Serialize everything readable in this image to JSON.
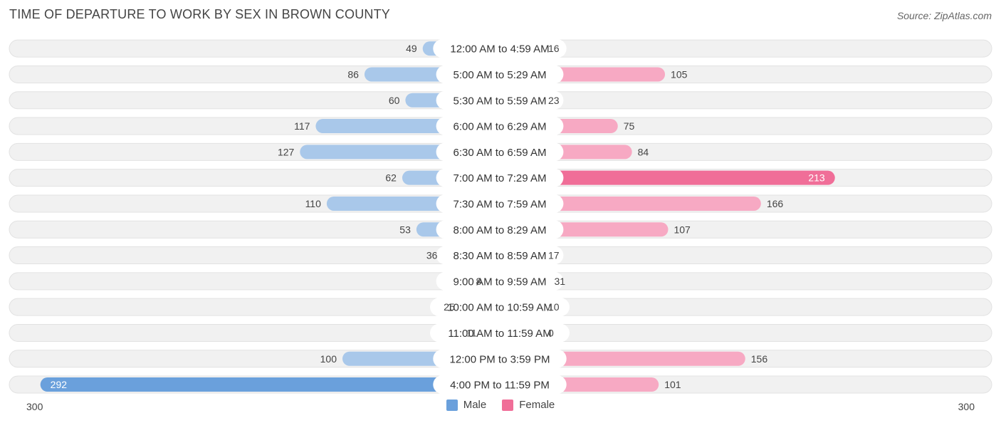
{
  "title": "TIME OF DEPARTURE TO WORK BY SEX IN BROWN COUNTY",
  "source": "Source: ZipAtlas.com",
  "colors": {
    "male_light": "#a9c8ea",
    "male_dark": "#6aa0dc",
    "female_light": "#f7a9c3",
    "female_dark": "#f06e98",
    "track": "#f1f1f1"
  },
  "chart_data": {
    "type": "bar",
    "orientation": "horizontal-diverging",
    "categories": [
      "12:00 AM to 4:59 AM",
      "5:00 AM to 5:29 AM",
      "5:30 AM to 5:59 AM",
      "6:00 AM to 6:29 AM",
      "6:30 AM to 6:59 AM",
      "7:00 AM to 7:29 AM",
      "7:30 AM to 7:59 AM",
      "8:00 AM to 8:29 AM",
      "8:30 AM to 8:59 AM",
      "9:00 AM to 9:59 AM",
      "10:00 AM to 10:59 AM",
      "11:00 AM to 11:59 AM",
      "12:00 PM to 3:59 PM",
      "4:00 PM to 11:59 PM"
    ],
    "series": [
      {
        "name": "Male",
        "values": [
          49,
          86,
          60,
          117,
          127,
          62,
          110,
          53,
          36,
          8,
          25,
          11,
          100,
          292
        ]
      },
      {
        "name": "Female",
        "values": [
          16,
          105,
          23,
          75,
          84,
          213,
          166,
          107,
          17,
          31,
          10,
          0,
          156,
          101
        ]
      }
    ],
    "xlim": [
      -300,
      300
    ],
    "axis_labels": {
      "left": "300",
      "right": "300"
    },
    "legend": [
      "Male",
      "Female"
    ]
  }
}
